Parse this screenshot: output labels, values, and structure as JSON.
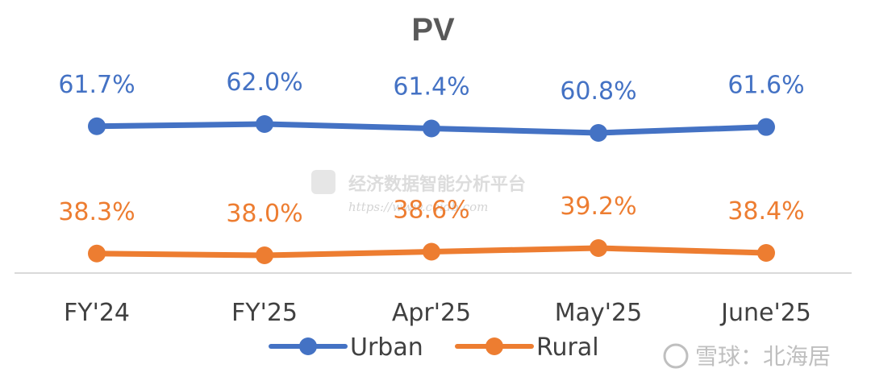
{
  "chart_data": {
    "type": "line",
    "title": "PV",
    "categories": [
      "FY'24",
      "FY'25",
      "Apr'25",
      "May'25",
      "June'25"
    ],
    "series": [
      {
        "name": "Urban",
        "values": [
          61.7,
          62.0,
          61.4,
          60.8,
          61.6
        ],
        "labels": [
          "61.7%",
          "62.0%",
          "61.4%",
          "60.8%",
          "61.6%"
        ],
        "color": "#4472C4"
      },
      {
        "name": "Rural",
        "values": [
          38.3,
          38.0,
          38.6,
          39.2,
          38.4
        ],
        "labels": [
          "38.3%",
          "38.0%",
          "38.6%",
          "39.2%",
          "38.4%"
        ],
        "color": "#ED7D31"
      }
    ],
    "legend": "bottom",
    "grid": false,
    "axis_color": "#d9d9d9"
  },
  "watermarks": {
    "center_text": "经济数据智能分析平台",
    "center_url": "https://www.ceidb.com",
    "corner_text": "雪球：北海居"
  }
}
